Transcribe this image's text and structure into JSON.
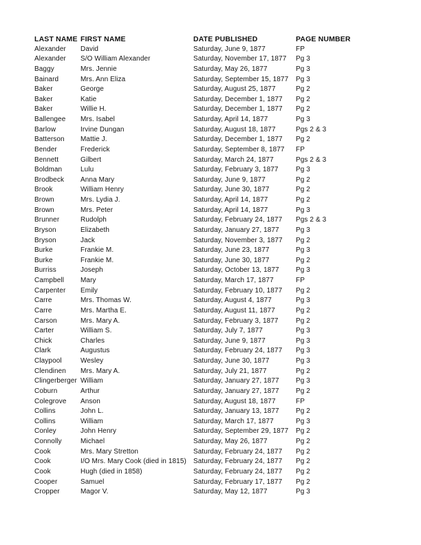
{
  "document": {
    "headers": [
      "LAST NAME",
      "FIRST NAME",
      "DATE PUBLISHED",
      "PAGE NUMBER"
    ],
    "rows": [
      {
        "last_name": "Alexander",
        "first_name": "David",
        "date_published": "Saturday, June 9, 1877",
        "page_number": "FP"
      },
      {
        "last_name": "Alexander",
        "first_name": "S/O William Alexander",
        "date_published": "Saturday, November 17, 1877",
        "page_number": "Pg 3"
      },
      {
        "last_name": "Baggy",
        "first_name": "Mrs. Jennie",
        "date_published": "Saturday, May 26, 1877",
        "page_number": "Pg 3"
      },
      {
        "last_name": "Bainard",
        "first_name": "Mrs. Ann Eliza",
        "date_published": "Saturday, September 15, 1877",
        "page_number": "Pg 3"
      },
      {
        "last_name": "Baker",
        "first_name": "George",
        "date_published": "Saturday, August 25, 1877",
        "page_number": "Pg 2"
      },
      {
        "last_name": "Baker",
        "first_name": "Katie",
        "date_published": "Saturday, December 1, 1877",
        "page_number": "Pg 2"
      },
      {
        "last_name": "Baker",
        "first_name": "Willie H.",
        "date_published": "Saturday, December 1, 1877",
        "page_number": "Pg 2"
      },
      {
        "last_name": "Ballengee",
        "first_name": "Mrs. Isabel",
        "date_published": "Saturday, April 14, 1877",
        "page_number": "Pg 3"
      },
      {
        "last_name": "Barlow",
        "first_name": "Irvine Dungan",
        "date_published": "Saturday, August 18, 1877",
        "page_number": "Pgs 2 & 3"
      },
      {
        "last_name": "Batterson",
        "first_name": "Mattie J.",
        "date_published": "Saturday, December 1, 1877",
        "page_number": "Pg 2"
      },
      {
        "last_name": "Bender",
        "first_name": "Frederick",
        "date_published": "Saturday, September 8, 1877",
        "page_number": "FP"
      },
      {
        "last_name": "Bennett",
        "first_name": "Gilbert",
        "date_published": "Saturday, March 24, 1877",
        "page_number": "Pgs 2 & 3"
      },
      {
        "last_name": "Boldman",
        "first_name": "Lulu",
        "date_published": "Saturday, February 3, 1877",
        "page_number": "Pg 3"
      },
      {
        "last_name": "Brodbeck",
        "first_name": "Anna Mary",
        "date_published": "Saturday, June 9, 1877",
        "page_number": "Pg 2"
      },
      {
        "last_name": "Brook",
        "first_name": "William Henry",
        "date_published": "Saturday, June 30, 1877",
        "page_number": "Pg 2"
      },
      {
        "last_name": "Brown",
        "first_name": "Mrs. Lydia J.",
        "date_published": "Saturday, April 14, 1877",
        "page_number": "Pg 2"
      },
      {
        "last_name": "Brown",
        "first_name": "Mrs. Peter",
        "date_published": "Saturday, April 14, 1877",
        "page_number": "Pg 3"
      },
      {
        "last_name": "Brunner",
        "first_name": "Rudolph",
        "date_published": "Saturday, February 24, 1877",
        "page_number": "Pgs 2 & 3"
      },
      {
        "last_name": "Bryson",
        "first_name": "Elizabeth",
        "date_published": "Saturday, January 27, 1877",
        "page_number": "Pg 3"
      },
      {
        "last_name": "Bryson",
        "first_name": "Jack",
        "date_published": "Saturday, November 3, 1877",
        "page_number": "Pg 2"
      },
      {
        "last_name": "Burke",
        "first_name": "Frankie M.",
        "date_published": "Saturday, June 23, 1877",
        "page_number": "Pg 3"
      },
      {
        "last_name": "Burke",
        "first_name": "Frankie M.",
        "date_published": "Saturday, June 30, 1877",
        "page_number": "Pg 2"
      },
      {
        "last_name": "Burriss",
        "first_name": "Joseph",
        "date_published": "Saturday, October 13, 1877",
        "page_number": "Pg 3"
      },
      {
        "last_name": "Campbell",
        "first_name": "Mary",
        "date_published": "Saturday, March 17, 1877",
        "page_number": "FP"
      },
      {
        "last_name": "Carpenter",
        "first_name": "Emily",
        "date_published": "Saturday, February 10, 1877",
        "page_number": "Pg 2"
      },
      {
        "last_name": "Carre",
        "first_name": "Mrs. Thomas W.",
        "date_published": "Saturday, August 4, 1877",
        "page_number": "Pg 3"
      },
      {
        "last_name": "Carre",
        "first_name": "Mrs. Martha E.",
        "date_published": "Saturday, August 11, 1877",
        "page_number": "Pg 2"
      },
      {
        "last_name": "Carson",
        "first_name": "Mrs. Mary A.",
        "date_published": "Saturday, February 3, 1877",
        "page_number": "Pg 2"
      },
      {
        "last_name": "Carter",
        "first_name": "William S.",
        "date_published": "Saturday, July 7, 1877",
        "page_number": "Pg 3"
      },
      {
        "last_name": "Chick",
        "first_name": "Charles",
        "date_published": "Saturday, June 9, 1877",
        "page_number": "Pg 3"
      },
      {
        "last_name": "Clark",
        "first_name": "Augustus",
        "date_published": "Saturday, February 24, 1877",
        "page_number": "Pg 3"
      },
      {
        "last_name": "Claypool",
        "first_name": "Wesley",
        "date_published": "Saturday, June 30, 1877",
        "page_number": "Pg 3"
      },
      {
        "last_name": "Clendinen",
        "first_name": "Mrs. Mary A.",
        "date_published": "Saturday, July 21, 1877",
        "page_number": "Pg 2"
      },
      {
        "last_name": "Clingerberger",
        "first_name": "William",
        "date_published": "Saturday, January 27, 1877",
        "page_number": "Pg 3"
      },
      {
        "last_name": "Coburn",
        "first_name": "Arthur",
        "date_published": "Saturday, January 27, 1877",
        "page_number": "Pg 2"
      },
      {
        "last_name": "Colegrove",
        "first_name": "Anson",
        "date_published": "Saturday, August 18, 1877",
        "page_number": "FP"
      },
      {
        "last_name": "Collins",
        "first_name": "John L.",
        "date_published": "Saturday, January 13, 1877",
        "page_number": "Pg 2"
      },
      {
        "last_name": "Collins",
        "first_name": "William",
        "date_published": "Saturday, March 17, 1877",
        "page_number": "Pg 3"
      },
      {
        "last_name": "Conley",
        "first_name": "John Henry",
        "date_published": "Saturday, September 29, 1877",
        "page_number": "Pg 2"
      },
      {
        "last_name": "Connolly",
        "first_name": "Michael",
        "date_published": "Saturday, May 26, 1877",
        "page_number": "Pg 2"
      },
      {
        "last_name": "Cook",
        "first_name": "Mrs. Mary Stretton",
        "date_published": "Saturday, February 24, 1877",
        "page_number": "Pg 2"
      },
      {
        "last_name": "Cook",
        "first_name": "I/O Mrs. Mary Cook (died in 1815)",
        "date_published": "Saturday, February 24, 1877",
        "page_number": "Pg 2"
      },
      {
        "last_name": "Cook",
        "first_name": "Hugh (died in 1858)",
        "date_published": "Saturday, February 24, 1877",
        "page_number": "Pg 2"
      },
      {
        "last_name": "Cooper",
        "first_name": "Samuel",
        "date_published": "Saturday, February 17, 1877",
        "page_number": "Pg 2"
      },
      {
        "last_name": "Cropper",
        "first_name": "Magor V.",
        "date_published": "Saturday, May 12, 1877",
        "page_number": "Pg 3"
      }
    ]
  }
}
